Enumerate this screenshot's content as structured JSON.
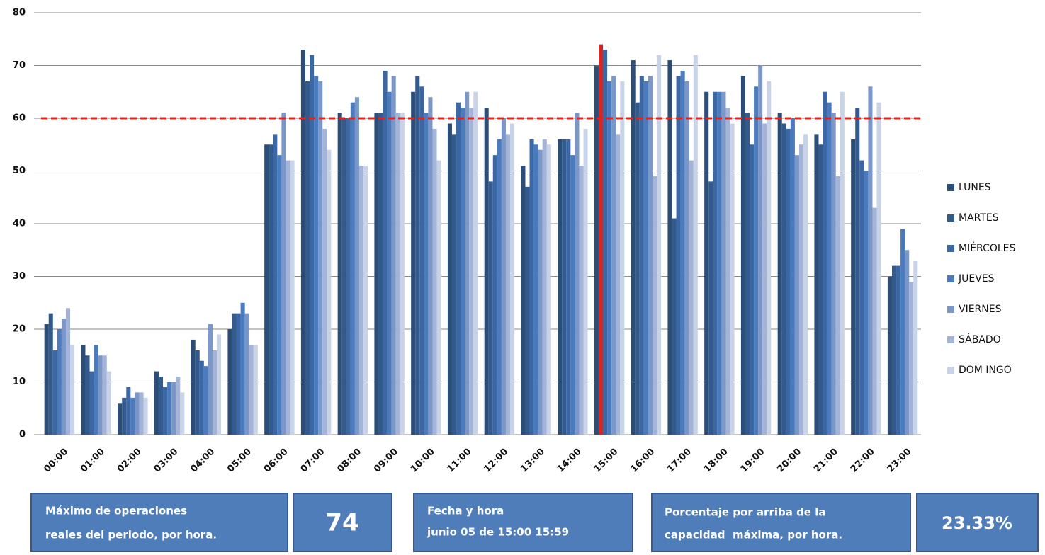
{
  "chart_data": {
    "type": "bar",
    "categories": [
      "00:00",
      "01:00",
      "02:00",
      "03:00",
      "04:00",
      "05:00",
      "06:00",
      "07:00",
      "08:00",
      "09:00",
      "10:00",
      "11:00",
      "12:00",
      "13:00",
      "14:00",
      "15:00",
      "16:00",
      "17:00",
      "18:00",
      "19:00",
      "20:00",
      "21:00",
      "22:00",
      "23:00"
    ],
    "series": [
      {
        "name": "LUNES",
        "color": "#2c4d75",
        "values": [
          21,
          17,
          6,
          12,
          18,
          20,
          55,
          73,
          61,
          61,
          65,
          59,
          62,
          51,
          56,
          70,
          71,
          71,
          65,
          68,
          61,
          57,
          56,
          30
        ]
      },
      {
        "name": "MARTES",
        "color": "#335a8c",
        "values": [
          23,
          15,
          7,
          11,
          16,
          23,
          55,
          67,
          60,
          61,
          68,
          57,
          48,
          47,
          56,
          74,
          63,
          41,
          48,
          61,
          59,
          55,
          62,
          32
        ]
      },
      {
        "name": "MIÉRCOLES",
        "color": "#3b68a4",
        "values": [
          16,
          12,
          9,
          9,
          14,
          23,
          57,
          72,
          60,
          69,
          66,
          63,
          53,
          56,
          56,
          73,
          68,
          68,
          65,
          55,
          58,
          65,
          52,
          32
        ]
      },
      {
        "name": "JUEVES",
        "color": "#4a7bbf",
        "values": [
          20,
          17,
          7,
          10,
          13,
          25,
          53,
          68,
          63,
          65,
          61,
          62,
          56,
          55,
          53,
          67,
          67,
          69,
          65,
          66,
          60,
          63,
          50,
          39
        ]
      },
      {
        "name": "VIERNES",
        "color": "#7b97c8",
        "values": [
          22,
          15,
          8,
          10,
          21,
          23,
          61,
          67,
          64,
          68,
          64,
          65,
          60,
          54,
          61,
          68,
          68,
          67,
          65,
          70,
          53,
          61,
          66,
          35
        ]
      },
      {
        "name": "SÁBADO",
        "color": "#a3b4d8",
        "values": [
          24,
          15,
          8,
          11,
          16,
          17,
          52,
          58,
          51,
          61,
          58,
          62,
          57,
          56,
          51,
          57,
          49,
          52,
          62,
          59,
          55,
          49,
          43,
          29
        ]
      },
      {
        "name": "DOM INGO",
        "color": "#c9d3e8",
        "values": [
          17,
          12,
          7,
          8,
          19,
          17,
          52,
          54,
          51,
          61,
          52,
          65,
          59,
          55,
          58,
          67,
          72,
          72,
          59,
          67,
          57,
          65,
          63,
          33
        ]
      }
    ],
    "ylim": [
      0,
      80
    ],
    "yticks": [
      0,
      10,
      20,
      30,
      40,
      50,
      60,
      70,
      80
    ],
    "grid": true,
    "threshold": 60,
    "threshold_color": "#e8201a",
    "max_value": 74,
    "max_category": "15:00",
    "max_series": "MARTES",
    "max_color": "#e8201a"
  },
  "info": {
    "max_label": [
      "Máximo de operaciones",
      "reales del periodo, por hora."
    ],
    "date_label": [
      "Fecha y hora",
      "junio 05 de 15:00 15:59"
    ],
    "percent_label": [
      "Porcentaje por arriba de la",
      "capacidad  máxima, por hora."
    ],
    "percent_value": "23.33%"
  }
}
